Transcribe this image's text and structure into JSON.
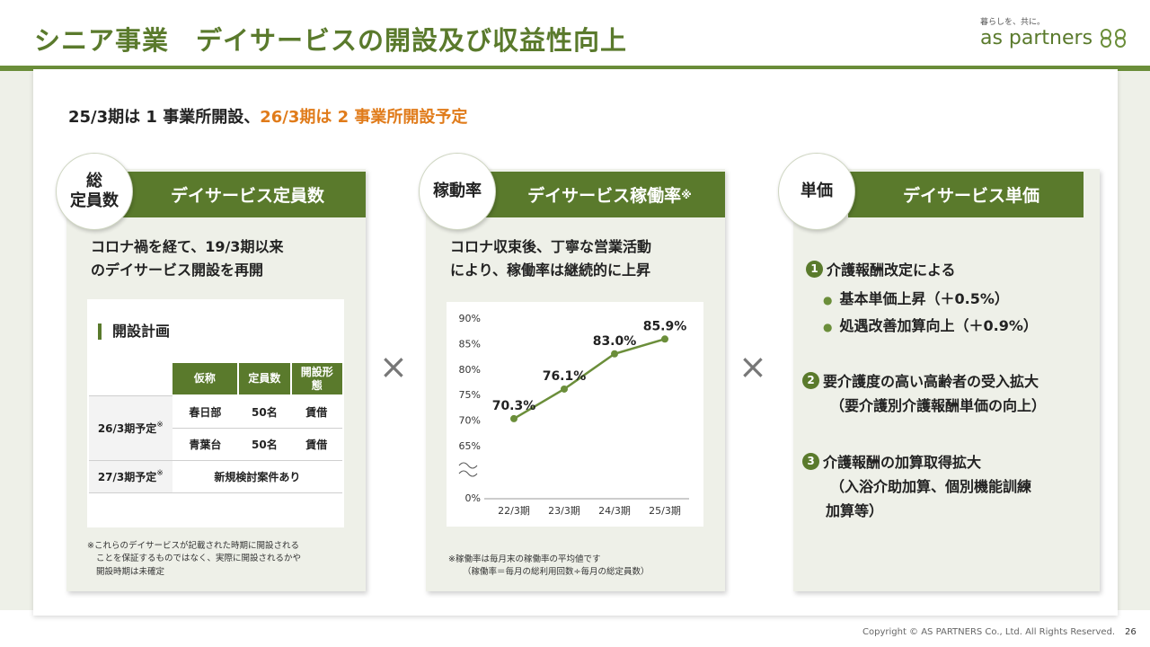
{
  "header": {
    "title": "シニア事業　デイサービスの開設及び収益性向上",
    "logo_tagline": "暮らしを、共に。",
    "logo_name": "as partners"
  },
  "summary": {
    "part1": "25/3期は 1 事業所開設、",
    "part2": "26/3期は 2 事業所開設予定"
  },
  "panel1": {
    "circle_label_line1": "総",
    "circle_label_line2": "定員数",
    "heading": "デイサービス定員数",
    "text_line1": "コロナ禍を経て、19/3期以来",
    "text_line2": "のデイサービス開設を再開",
    "plan_title": "開設計画",
    "table": {
      "headers": [
        "仮称",
        "定員数",
        "開設形態"
      ],
      "rows": [
        {
          "period": "26/3期予定",
          "name": "春日部",
          "capacity": "50名",
          "type": "賃借"
        },
        {
          "period": "",
          "name": "青葉台",
          "capacity": "50名",
          "type": "賃借"
        },
        {
          "period": "27/3期予定",
          "merged": "新規検討案件あり"
        }
      ],
      "mark": "※"
    },
    "note_line1": "※これらのデイサービスが記載された時期に開設される",
    "note_line2": "ことを保証するものではなく、実際に開設されるかや",
    "note_line3": "開設時期は未確定"
  },
  "panel2": {
    "circle_label": "稼動率",
    "heading": "デイサービス稼働率",
    "heading_mark": "※",
    "text_line1": "コロナ収束後、丁寧な営業活動",
    "text_line2": "により、稼働率は継続的に上昇",
    "note_line1": "※稼働率は毎月末の稼働率の平均値です",
    "note_line2": "（稼働率＝毎月の総利用回数÷毎月の総定員数）"
  },
  "panel3": {
    "circle_label": "単価",
    "heading": "デイサービス単価",
    "items": [
      {
        "num": "1",
        "label": "介護報酬改定による"
      },
      {
        "num": "2",
        "label": "要介護度の高い高齢者の受入拡大"
      },
      {
        "num": "3",
        "label": "介護報酬の加算取得拡大"
      }
    ],
    "sub1": "基本単価上昇（＋0.5%）",
    "sub2": "処遇改善加算向上（＋0.9%）",
    "sub3": "（要介護別介護報酬単価の向上）",
    "sub4": "（入浴介助加算、個別機能訓練",
    "sub5": "加算等）"
  },
  "operators": {
    "times": "×"
  },
  "chart_data": {
    "type": "line",
    "categories": [
      "22/3期",
      "23/3期",
      "24/3期",
      "25/3期"
    ],
    "series": [
      {
        "values": [
          70.3,
          76.1,
          83.0,
          85.9
        ]
      }
    ],
    "data_labels": [
      "70.3%",
      "76.1%",
      "83.0%",
      "85.9%"
    ],
    "y_ticks": [
      "90%",
      "85%",
      "80%",
      "75%",
      "70%",
      "65%",
      "0%"
    ],
    "y_tick_values": [
      90,
      85,
      80,
      75,
      70,
      65,
      0
    ],
    "ylim": [
      65,
      90
    ],
    "axis_break": true,
    "grid": false,
    "line_color": "#6b8e3a"
  },
  "footer": {
    "copyright": "Copyright © AS PARTNERS Co., Ltd. All Rights Reserved.",
    "page": "26"
  },
  "colors": {
    "brand_green": "#5a7a2c",
    "accent_orange": "#e07b1a",
    "panel_bg": "#eef0e8"
  }
}
